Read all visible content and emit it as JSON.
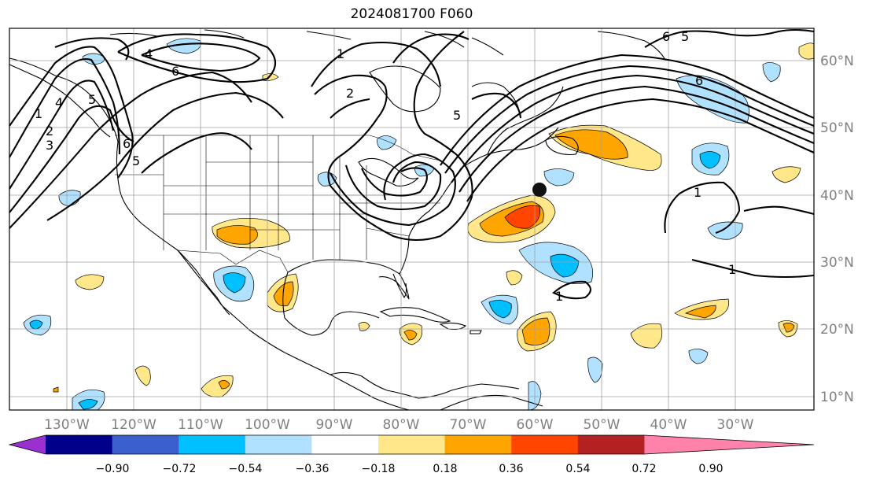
{
  "title": "2024081700 F060",
  "map": {
    "lon_labels": [
      "130°W",
      "120°W",
      "110°W",
      "100°W",
      "90°W",
      "80°W",
      "70°W",
      "60°W",
      "50°W",
      "40°W",
      "30°W"
    ],
    "lat_labels": [
      "60°N",
      "50°N",
      "40°N",
      "30°N",
      "20°N",
      "10°N"
    ],
    "contour_labels": [
      "1",
      "2",
      "3",
      "4",
      "5",
      "6",
      "4",
      "6",
      "5",
      "6",
      "5",
      "6",
      "1",
      "1",
      "1",
      "5",
      "1",
      "2"
    ],
    "marker": "storm-center-dot"
  },
  "colorbar": {
    "ticks": [
      "−0.90",
      "−0.72",
      "−0.54",
      "−0.36",
      "−0.18",
      "0.18",
      "0.36",
      "0.54",
      "0.72",
      "0.90"
    ],
    "colors": [
      "#9b30d0",
      "#00008b",
      "#3a5fcd",
      "#00bfff",
      "#b0e2ff",
      "#ffffff",
      "#ffe78a",
      "#ffa500",
      "#ff4500",
      "#b22222",
      "#ff82ab"
    ]
  },
  "colors": {
    "light_blue": "#b0e2ff",
    "blue": "#00bfff",
    "yellow": "#ffe78a",
    "orange": "#ffa500",
    "red_orange": "#ff4500",
    "grid": "#a0a0a0",
    "axis_text": "#808080"
  }
}
